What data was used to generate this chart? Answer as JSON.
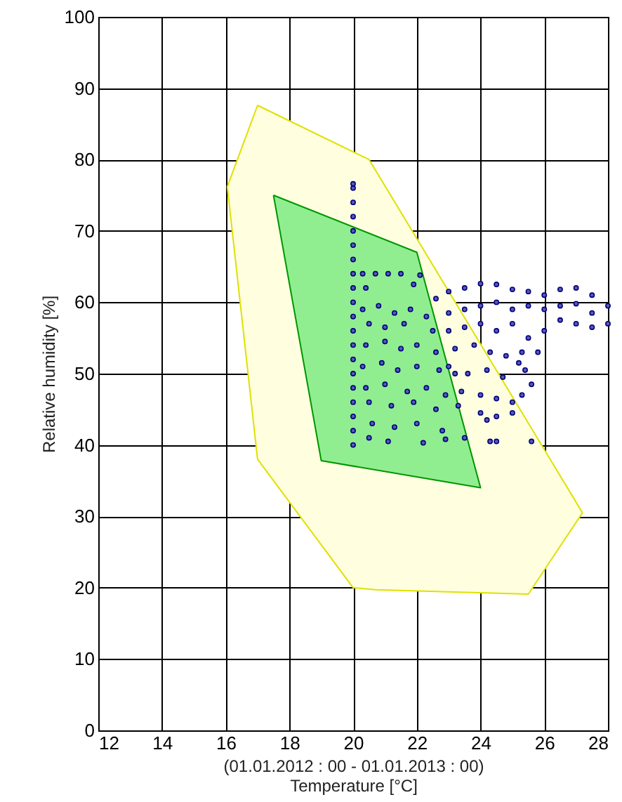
{
  "chart_data": {
    "type": "scatter",
    "xlabel": "Temperature [°C]",
    "ylabel": "Relative humidity [%]",
    "annotations": [
      "(01.01.2012 : 00 - 01.01.2013 : 00)"
    ],
    "xlim": [
      12,
      28
    ],
    "xticks": [
      12,
      14,
      16,
      18,
      20,
      22,
      24,
      26,
      28
    ],
    "ylim": [
      0,
      100
    ],
    "yticks": [
      0,
      10,
      20,
      30,
      40,
      50,
      60,
      70,
      80,
      90,
      100
    ],
    "grid": true,
    "series": [
      {
        "type": "area",
        "color": "#ffffe0",
        "x": [
          17,
          20.5,
          27.2,
          25.5,
          20.7,
          20,
          17,
          16.05,
          17
        ],
        "values": [
          87.6,
          80,
          30.5,
          19.1,
          19.7,
          20,
          38,
          76.2,
          87.6
        ]
      },
      {
        "type": "area",
        "color": "#90ee90",
        "x": [
          17.5,
          22,
          24,
          19,
          17.5
        ],
        "values": [
          75,
          67,
          34,
          37.8,
          75
        ]
      },
      {
        "marker": "circle",
        "color": "#000080",
        "x": [
          20,
          20,
          20,
          20,
          20,
          20,
          20,
          20,
          20,
          20,
          20,
          20,
          20,
          20,
          20,
          20,
          20,
          20,
          20,
          20,
          20.3,
          20.7,
          21.1,
          21.5,
          22.1,
          20.4,
          21.9,
          20.3,
          20.8,
          21.3,
          21.8,
          22.3,
          20.5,
          21,
          21.6,
          22.5,
          20.4,
          21,
          21.5,
          22,
          22.6,
          20.3,
          20.9,
          21.4,
          22,
          22.7,
          23.2,
          20.4,
          21,
          21.7,
          22.3,
          22.9,
          20.5,
          21.2,
          21.9,
          22.6,
          23.3,
          20.6,
          21.3,
          22,
          22.8,
          20.5,
          21.1,
          22.2,
          22.9,
          23.5,
          24.3,
          24.5,
          22.6,
          23,
          23.5,
          24,
          24.5,
          25,
          25.5,
          26,
          26.5,
          27,
          27.5,
          28,
          28,
          27.5,
          27,
          26.5,
          26,
          25.5,
          25.8,
          25.3,
          23,
          23.5,
          24,
          24.5,
          25,
          25.5,
          26,
          26.5,
          27,
          27.5,
          23,
          23.5,
          24,
          24.5,
          25,
          23.2,
          23.8,
          24.3,
          24.8,
          25.2,
          23,
          23.6,
          24.2,
          24.7,
          25.4,
          25.6,
          23.4,
          24,
          24.5,
          25,
          25.3,
          24,
          24.5,
          25,
          24.2,
          25.6
        ],
        "values": [
          40,
          42,
          44,
          46,
          48,
          50,
          52,
          54,
          56,
          58,
          60,
          62,
          64,
          66,
          68,
          70,
          72,
          74,
          76,
          76.6,
          64,
          64,
          64,
          64,
          63.8,
          62,
          62.5,
          59,
          59.5,
          58.5,
          59,
          58,
          57,
          56.5,
          57,
          56,
          54,
          54.5,
          53.5,
          54,
          53,
          51,
          51.5,
          50.5,
          51,
          50.5,
          50,
          48,
          48.5,
          47.5,
          48,
          47,
          46,
          45.5,
          46,
          45,
          45.5,
          43,
          42.5,
          43,
          42,
          41,
          40.5,
          40.3,
          40.8,
          41,
          40.5,
          40.5,
          60.5,
          61.5,
          62,
          62.6,
          62.5,
          61.8,
          61.5,
          61,
          61.8,
          62,
          61,
          59.5,
          57,
          56.5,
          57,
          57.5,
          56,
          55,
          53,
          53,
          58.5,
          59,
          59.5,
          60,
          59,
          59.5,
          59,
          59.5,
          59.8,
          58.5,
          56,
          56.5,
          57,
          56,
          57,
          53.5,
          54,
          53,
          52.5,
          51.5,
          51,
          50,
          50.5,
          49.5,
          50.5,
          48.5,
          47.5,
          47,
          46.5,
          46,
          47,
          44.5,
          44,
          44.5,
          43.5,
          40.5
        ]
      }
    ]
  }
}
